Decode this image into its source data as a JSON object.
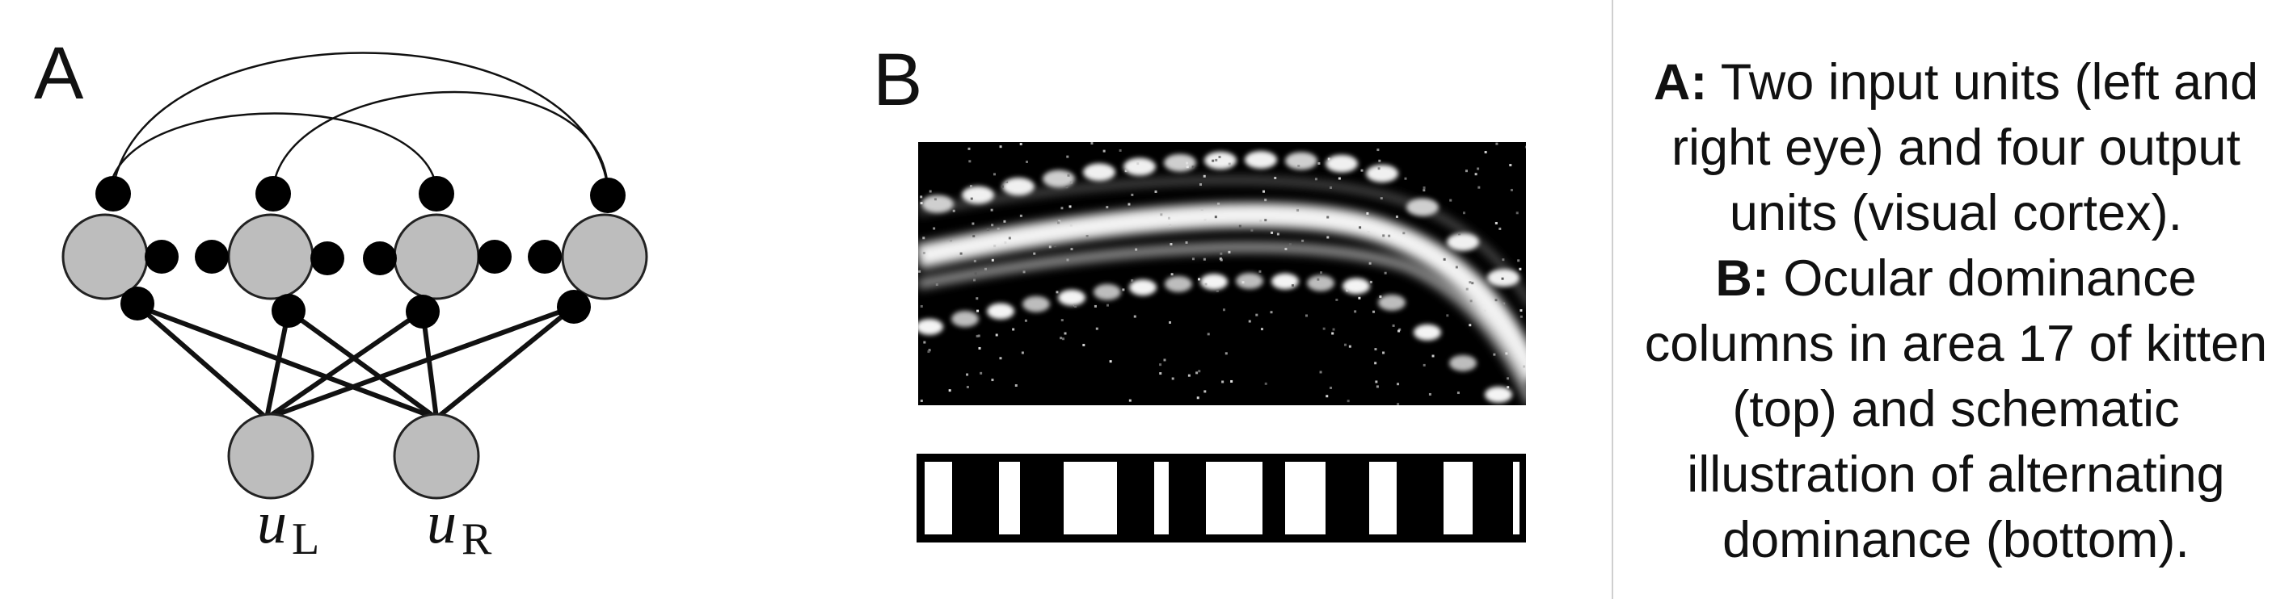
{
  "panel_a": {
    "letter": "A",
    "input_units": [
      {
        "label": "u",
        "subscript": "L"
      },
      {
        "label": "u",
        "subscript": "R"
      }
    ],
    "output_unit_count": 4
  },
  "panel_b": {
    "letter": "B"
  },
  "caption": {
    "a_label": "A:",
    "a_text": "Two input units (left and right eye) and four output units (visual cortex).",
    "b_label": "B:",
    "b_text": "Ocular dominance columns in area 17 of kitten (top) and schematic illustration of alternating dominance (bottom)."
  },
  "colors": {
    "unit_fill": "#bdbdbd",
    "synapse_fill": "#000000",
    "background": "#ffffff"
  }
}
